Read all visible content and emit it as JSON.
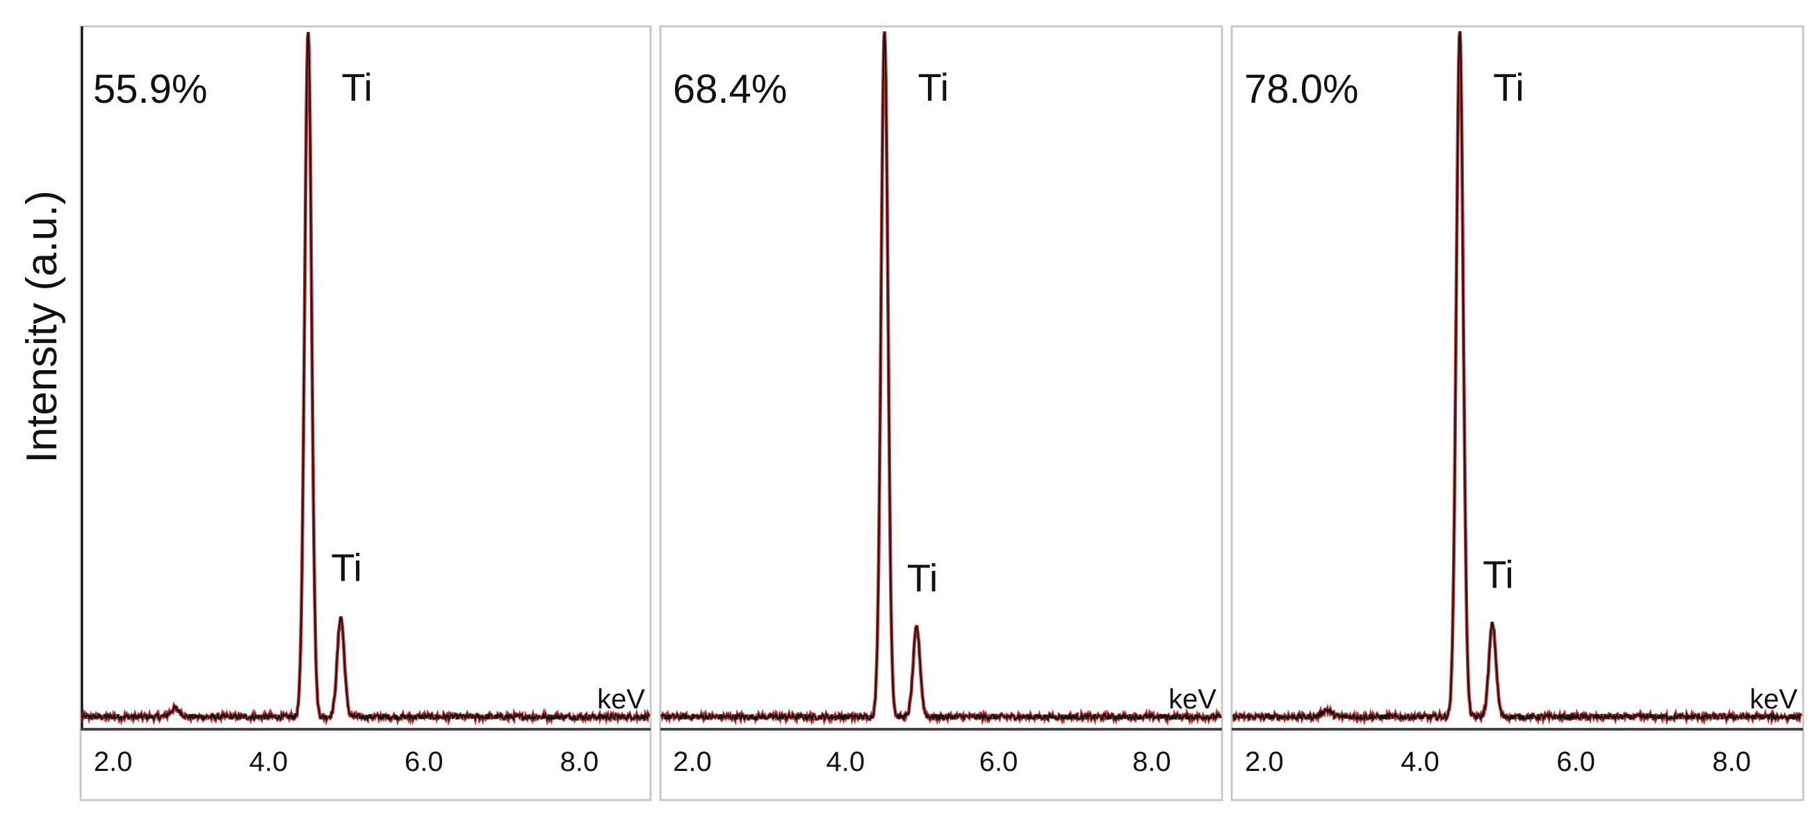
{
  "figure": {
    "ylabel": "Intensity (a.u.)",
    "xunit": "keV",
    "colors": {
      "trace": "#111111",
      "fit": "#b01818",
      "frame": "#c8c8c8",
      "axis": "#444444"
    }
  },
  "chart_data": [
    {
      "type": "line",
      "panel_label": "55.9%",
      "xunit": "keV",
      "xlim": [
        1.6,
        8.9
      ],
      "ylim": [
        0,
        1.0
      ],
      "x_ticks": [
        "2.0",
        "4.0",
        "6.0",
        "8.0"
      ],
      "peaks": [
        {
          "label": "Ti",
          "energy": 4.51,
          "intensity": 1.0
        },
        {
          "label": "Ti",
          "energy": 4.93,
          "intensity": 0.145
        }
      ],
      "baseline": 0.008,
      "minor_peaks": [
        {
          "energy": 2.8,
          "intensity": 0.012
        }
      ]
    },
    {
      "type": "line",
      "panel_label": "68.4%",
      "xunit": "keV",
      "xlim": [
        1.6,
        8.9
      ],
      "ylim": [
        0,
        1.0
      ],
      "x_ticks": [
        "2.0",
        "4.0",
        "6.0",
        "8.0"
      ],
      "peaks": [
        {
          "label": "Ti",
          "energy": 4.51,
          "intensity": 1.0
        },
        {
          "label": "Ti",
          "energy": 4.93,
          "intensity": 0.13
        }
      ],
      "baseline": 0.008,
      "minor_peaks": []
    },
    {
      "type": "line",
      "panel_label": "78.0%",
      "xunit": "keV",
      "xlim": [
        1.6,
        8.9
      ],
      "ylim": [
        0,
        1.0
      ],
      "x_ticks": [
        "2.0",
        "4.0",
        "6.0",
        "8.0"
      ],
      "peaks": [
        {
          "label": "Ti",
          "energy": 4.51,
          "intensity": 1.0
        },
        {
          "label": "Ti",
          "energy": 4.93,
          "intensity": 0.135
        }
      ],
      "baseline": 0.008,
      "minor_peaks": [
        {
          "energy": 2.8,
          "intensity": 0.01
        }
      ]
    }
  ]
}
